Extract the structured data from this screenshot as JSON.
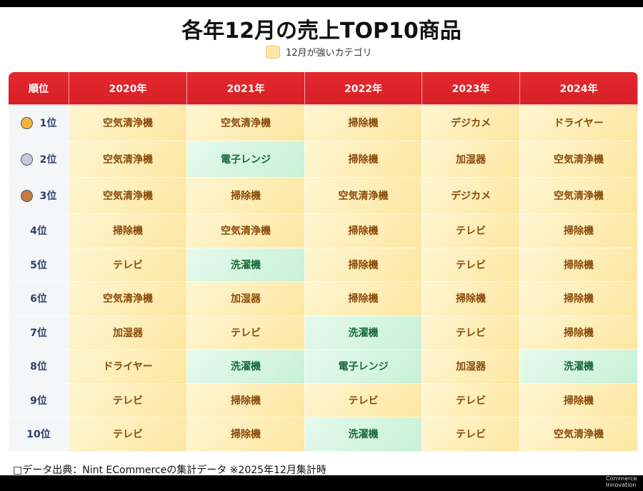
{
  "title": "各年12月の売上TOP10商品",
  "legend": "12月が強いカテゴリ",
  "table": {
    "header": [
      "順位",
      "2020年",
      "2021年",
      "2022年",
      "2023年",
      "2024年"
    ],
    "rows": [
      {
        "rank": "1位",
        "medal": "gold",
        "cells": [
          {
            "text": "空気清浄機",
            "strong": true
          },
          {
            "text": "空気清浄機",
            "strong": true
          },
          {
            "text": "掃除機",
            "strong": true
          },
          {
            "text": "デジカメ",
            "strong": true
          },
          {
            "text": "ドライヤー",
            "strong": true
          }
        ]
      },
      {
        "rank": "2位",
        "medal": "silver",
        "cells": [
          {
            "text": "空気清浄機",
            "strong": true
          },
          {
            "text": "電子レンジ",
            "strong": false
          },
          {
            "text": "掃除機",
            "strong": true
          },
          {
            "text": "加湿器",
            "strong": true
          },
          {
            "text": "空気清浄機",
            "strong": true
          }
        ]
      },
      {
        "rank": "3位",
        "medal": "bronze",
        "cells": [
          {
            "text": "空気清浄機",
            "strong": true
          },
          {
            "text": "掃除機",
            "strong": true
          },
          {
            "text": "空気清浄機",
            "strong": true
          },
          {
            "text": "デジカメ",
            "strong": true
          },
          {
            "text": "空気清浄機",
            "strong": true
          }
        ]
      },
      {
        "rank": "4位",
        "cells": [
          {
            "text": "掃除機",
            "strong": true
          },
          {
            "text": "空気清浄機",
            "strong": true
          },
          {
            "text": "掃除機",
            "strong": true
          },
          {
            "text": "テレビ",
            "strong": true
          },
          {
            "text": "掃除機",
            "strong": true
          }
        ]
      },
      {
        "rank": "5位",
        "cells": [
          {
            "text": "テレビ",
            "strong": true
          },
          {
            "text": "洗濯機",
            "strong": false
          },
          {
            "text": "掃除機",
            "strong": true
          },
          {
            "text": "テレビ",
            "strong": true
          },
          {
            "text": "掃除機",
            "strong": true
          }
        ]
      },
      {
        "rank": "6位",
        "cells": [
          {
            "text": "空気清浄機",
            "strong": true
          },
          {
            "text": "加湿器",
            "strong": true
          },
          {
            "text": "掃除機",
            "strong": true
          },
          {
            "text": "掃除機",
            "strong": true
          },
          {
            "text": "掃除機",
            "strong": true
          }
        ]
      },
      {
        "rank": "7位",
        "cells": [
          {
            "text": "加湿器",
            "strong": true
          },
          {
            "text": "テレビ",
            "strong": true
          },
          {
            "text": "洗濯機",
            "strong": false
          },
          {
            "text": "テレビ",
            "strong": true
          },
          {
            "text": "掃除機",
            "strong": true
          }
        ]
      },
      {
        "rank": "8位",
        "cells": [
          {
            "text": "ドライヤー",
            "strong": true
          },
          {
            "text": "洗濯機",
            "strong": false
          },
          {
            "text": "電子レンジ",
            "strong": false
          },
          {
            "text": "加湿器",
            "strong": true
          },
          {
            "text": "洗濯機",
            "strong": false
          }
        ]
      },
      {
        "rank": "9位",
        "cells": [
          {
            "text": "テレビ",
            "strong": true
          },
          {
            "text": "掃除機",
            "strong": true
          },
          {
            "text": "テレビ",
            "strong": true
          },
          {
            "text": "テレビ",
            "strong": true
          },
          {
            "text": "掃除機",
            "strong": true
          }
        ]
      },
      {
        "rank": "10位",
        "cells": [
          {
            "text": "テレビ",
            "strong": true
          },
          {
            "text": "掃除機",
            "strong": true
          },
          {
            "text": "洗濯機",
            "strong": false
          },
          {
            "text": "テレビ",
            "strong": true
          },
          {
            "text": "空気清浄機",
            "strong": true
          }
        ]
      }
    ]
  },
  "footer": "□データ出典：Nint ECommerceの集計データ ※2025年12月集計時",
  "logo": [
    "Commerce",
    "Innovation"
  ]
}
